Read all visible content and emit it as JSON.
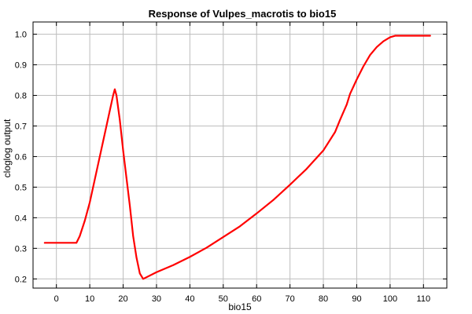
{
  "chart_data": {
    "type": "line",
    "title": "Response of Vulpes_macrotis to bio15",
    "xlabel": "bio15",
    "ylabel": "cloglog output",
    "xlim": [
      -7,
      117
    ],
    "ylim": [
      0.17,
      1.04
    ],
    "x_ticks": [
      0,
      10,
      20,
      30,
      40,
      50,
      60,
      70,
      80,
      90,
      100,
      110
    ],
    "y_ticks": [
      0.2,
      0.3,
      0.4,
      0.5,
      0.6,
      0.7,
      0.8,
      0.9,
      1.0
    ],
    "x_tick_labels": [
      "0",
      "10",
      "20",
      "30",
      "40",
      "50",
      "60",
      "70",
      "80",
      "90",
      "100",
      "110"
    ],
    "y_tick_labels": [
      "0.2",
      "0.3",
      "0.4",
      "0.5",
      "0.6",
      "0.7",
      "0.8",
      "0.9",
      "1.0"
    ],
    "grid": true,
    "series": [
      {
        "color": "#ff0000",
        "x": [
          -3.5,
          6.0,
          7.0,
          8.5,
          10.0,
          12.0,
          14.0,
          16.0,
          17.0,
          17.5,
          18.0,
          19.0,
          20.0,
          21.0,
          22.0,
          23.0,
          24.0,
          25.0,
          26.0,
          30.0,
          35.0,
          40.0,
          45.0,
          50.0,
          55.0,
          60.0,
          65.0,
          70.0,
          75.0,
          80.0,
          83.5,
          85.0,
          87.0,
          88.0,
          90.0,
          92.0,
          94.0,
          96.0,
          98.0,
          100.0,
          101.5,
          103.0,
          105.0,
          108.0,
          112.0
        ],
        "y": [
          0.318,
          0.318,
          0.34,
          0.39,
          0.45,
          0.55,
          0.65,
          0.75,
          0.8,
          0.82,
          0.8,
          0.72,
          0.62,
          0.53,
          0.44,
          0.34,
          0.27,
          0.218,
          0.2,
          0.222,
          0.245,
          0.272,
          0.302,
          0.337,
          0.372,
          0.414,
          0.458,
          0.508,
          0.56,
          0.62,
          0.68,
          0.72,
          0.77,
          0.805,
          0.852,
          0.895,
          0.932,
          0.958,
          0.977,
          0.99,
          0.995,
          0.995,
          0.995,
          0.995,
          0.995
        ]
      }
    ]
  }
}
